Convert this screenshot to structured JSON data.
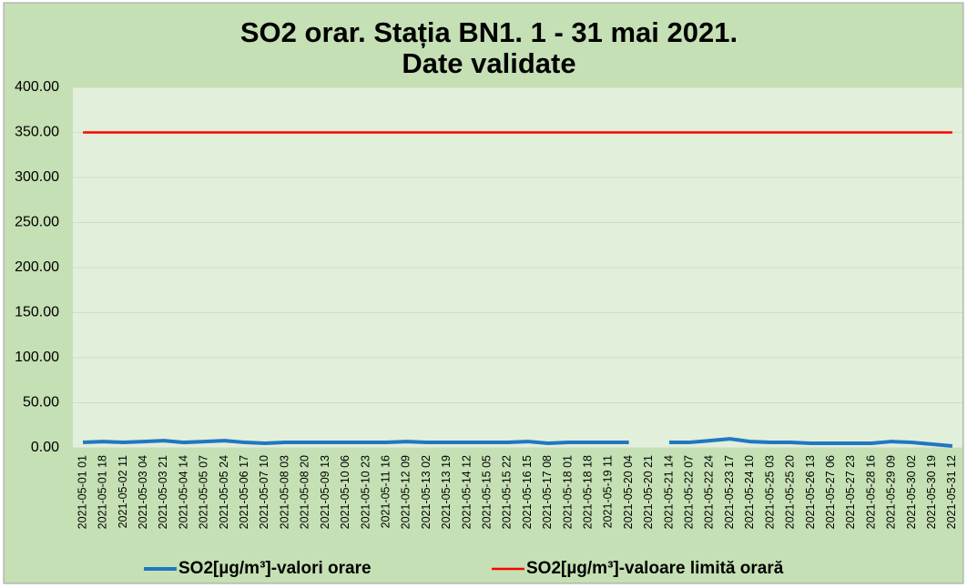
{
  "chart_data": {
    "type": "line",
    "title": [
      "SO2 orar. Stația BN1. 1 - 31 mai 2021.",
      "Date validate"
    ],
    "categories": [
      "2021-05-01 01",
      "2021-05-01 18",
      "2021-05-02 11",
      "2021-05-03 04",
      "2021-05-03 21",
      "2021-05-04 14",
      "2021-05-05 07",
      "2021-05-05 24",
      "2021-05-06 17",
      "2021-05-07 10",
      "2021-05-08 03",
      "2021-05-08 20",
      "2021-05-09 13",
      "2021-05-10 06",
      "2021-05-10 23",
      "2021-05-11 16",
      "2021-05-12 09",
      "2021-05-13 02",
      "2021-05-13 19",
      "2021-05-14 12",
      "2021-05-15 05",
      "2021-05-15 22",
      "2021-05-16 15",
      "2021-05-17 08",
      "2021-05-18 01",
      "2021-05-18 18",
      "2021-05-19 11",
      "2021-05-20 04",
      "2021-05-20 21",
      "2021-05-21 14",
      "2021-05-22 07",
      "2021-05-22 24",
      "2021-05-23 17",
      "2021-05-24 10",
      "2021-05-25 03",
      "2021-05-25 20",
      "2021-05-26 13",
      "2021-05-27 06",
      "2021-05-27 23",
      "2021-05-28 16",
      "2021-05-29 09",
      "2021-05-30 02",
      "2021-05-30 19",
      "2021-05-31 12"
    ],
    "series": [
      {
        "name": "SO2[µg/m³]-valori orare",
        "color": "#1f77c4",
        "values": [
          6,
          7,
          6,
          7,
          8,
          6,
          7,
          8,
          6,
          5,
          6,
          6,
          6,
          6,
          6,
          6,
          7,
          6,
          6,
          6,
          6,
          6,
          7,
          5,
          6,
          6,
          6,
          6,
          null,
          6,
          6,
          8,
          10,
          7,
          6,
          6,
          5,
          5,
          5,
          5,
          7,
          6,
          4,
          2
        ]
      },
      {
        "name": "SO2[µg/m³]-valoare limită orară",
        "color": "#ff0000",
        "values": [
          350,
          350,
          350,
          350,
          350,
          350,
          350,
          350,
          350,
          350,
          350,
          350,
          350,
          350,
          350,
          350,
          350,
          350,
          350,
          350,
          350,
          350,
          350,
          350,
          350,
          350,
          350,
          350,
          350,
          350,
          350,
          350,
          350,
          350,
          350,
          350,
          350,
          350,
          350,
          350,
          350,
          350,
          350,
          350
        ]
      }
    ],
    "ylim": [
      0,
      400
    ],
    "yticks": [
      {
        "value": 0,
        "label": "0.00"
      },
      {
        "value": 50,
        "label": "50.00"
      },
      {
        "value": 100,
        "label": "100.00"
      },
      {
        "value": 150,
        "label": "150.00"
      },
      {
        "value": 200,
        "label": "200.00"
      },
      {
        "value": 250,
        "label": "250.00"
      },
      {
        "value": 300,
        "label": "300.00"
      },
      {
        "value": 350,
        "label": "350.00"
      },
      {
        "value": 400,
        "label": "400.00"
      }
    ],
    "grid": true,
    "legend": "bottom"
  }
}
